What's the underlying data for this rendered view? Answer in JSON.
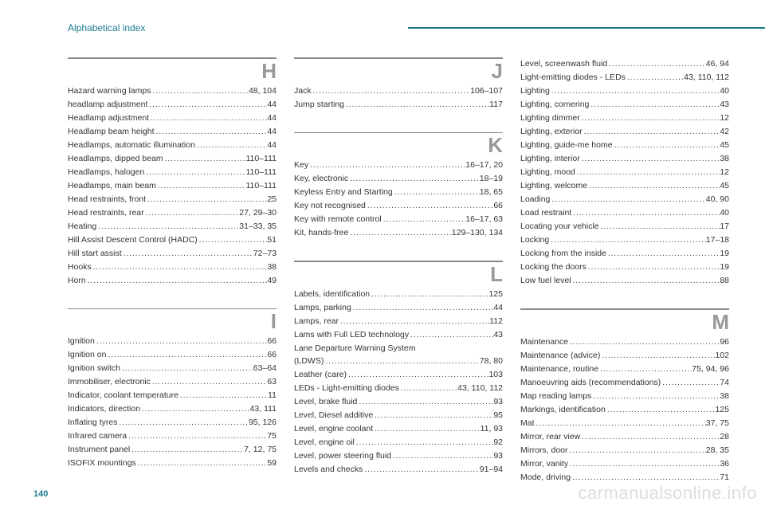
{
  "header": {
    "title": "Alphabetical index"
  },
  "page_number": "140",
  "watermark": "carmanualsonline.info",
  "columns": [
    {
      "sections": [
        {
          "letter": "H",
          "entries": [
            {
              "label": "Hazard warning lamps",
              "pages": "48, 104"
            },
            {
              "label": "headlamp adjustment",
              "pages": "44"
            },
            {
              "label": "Headlamp adjustment",
              "pages": "44"
            },
            {
              "label": "Headlamp beam height",
              "pages": "44"
            },
            {
              "label": "Headlamps, automatic illumination",
              "pages": "44"
            },
            {
              "label": "Headlamps, dipped beam",
              "pages": "110–111"
            },
            {
              "label": "Headlamps, halogen",
              "pages": "110–111"
            },
            {
              "label": "Headlamps, main beam",
              "pages": "110–111"
            },
            {
              "label": "Head restraints, front",
              "pages": "25"
            },
            {
              "label": "Head restraints, rear",
              "pages": "27, 29–30"
            },
            {
              "label": "Heating",
              "pages": "31–33, 35"
            },
            {
              "label": "Hill Assist Descent Control (HADC)",
              "pages": "51"
            },
            {
              "label": "Hill start assist",
              "pages": "72–73"
            },
            {
              "label": "Hooks",
              "pages": "38"
            },
            {
              "label": "Horn",
              "pages": "49"
            }
          ],
          "gap_after": true
        },
        {
          "letter": "I",
          "entries": [
            {
              "label": "Ignition",
              "pages": "66"
            },
            {
              "label": "Ignition on",
              "pages": "66"
            },
            {
              "label": "Ignition switch",
              "pages": "63–64"
            },
            {
              "label": "Immobiliser, electronic",
              "pages": "63"
            },
            {
              "label": "Indicator, coolant temperature",
              "pages": "11"
            },
            {
              "label": "Indicators, direction",
              "pages": "43, 111"
            },
            {
              "label": "Inflating tyres",
              "pages": "95, 126"
            },
            {
              "label": "Infrared camera",
              "pages": "75"
            },
            {
              "label": "Instrument panel",
              "pages": "7, 12, 75"
            },
            {
              "label": "ISOFIX mountings",
              "pages": "59"
            }
          ]
        }
      ]
    },
    {
      "sections": [
        {
          "letter": "J",
          "entries": [
            {
              "label": "Jack",
              "pages": "106–107"
            },
            {
              "label": "Jump starting",
              "pages": "117"
            }
          ],
          "gap_after": true
        },
        {
          "letter": "K",
          "entries": [
            {
              "label": "Key",
              "pages": "16–17, 20"
            },
            {
              "label": "Key, electronic",
              "pages": "18–19"
            },
            {
              "label": "Keyless Entry and Starting",
              "pages": "18, 65"
            },
            {
              "label": "Key not recognised",
              "pages": "66"
            },
            {
              "label": "Key with remote control",
              "pages": "16–17, 63"
            },
            {
              "label": "Kit, hands-free",
              "pages": "129–130, 134"
            }
          ],
          "gap_after": true
        },
        {
          "letter": "L",
          "entries": [
            {
              "label": "Labels, identification",
              "pages": "125"
            },
            {
              "label": "Lamps, parking",
              "pages": "44"
            },
            {
              "label": "Lamps, rear",
              "pages": "112"
            },
            {
              "label": "Lams with Full LED technology",
              "pages": "43"
            },
            {
              "label": "Lane Departure Warning System",
              "pages": ""
            },
            {
              "label": "(LDWS)",
              "pages": "78, 80"
            },
            {
              "label": "Leather (care)",
              "pages": "103"
            },
            {
              "label": "LEDs - Light-emitting diodes",
              "pages": "43, 110, 112"
            },
            {
              "label": "Level, brake fluid",
              "pages": "93"
            },
            {
              "label": "Level, Diesel additive",
              "pages": "95"
            },
            {
              "label": "Level, engine coolant",
              "pages": "11, 93"
            },
            {
              "label": "Level, engine oil",
              "pages": "92"
            },
            {
              "label": "Level, power steering fluid",
              "pages": "93"
            },
            {
              "label": "Levels and checks",
              "pages": "91–94"
            }
          ]
        }
      ]
    },
    {
      "sections": [
        {
          "entries": [
            {
              "label": "Level, screenwash fluid",
              "pages": "46, 94"
            },
            {
              "label": "Light-emitting diodes - LEDs",
              "pages": "43, 110, 112"
            },
            {
              "label": "Lighting",
              "pages": "40"
            },
            {
              "label": "Lighting, cornering",
              "pages": "43"
            },
            {
              "label": "Lighting dimmer",
              "pages": "12"
            },
            {
              "label": "Lighting, exterior",
              "pages": "42"
            },
            {
              "label": "Lighting, guide-me home",
              "pages": "45"
            },
            {
              "label": "Lighting, interior",
              "pages": "38"
            },
            {
              "label": "Lighting, mood",
              "pages": "12"
            },
            {
              "label": "Lighting, welcome",
              "pages": "45"
            },
            {
              "label": "Loading",
              "pages": "40, 90"
            },
            {
              "label": "Load restraint",
              "pages": "40"
            },
            {
              "label": "Locating your vehicle",
              "pages": "17"
            },
            {
              "label": "Locking",
              "pages": "17–18"
            },
            {
              "label": "Locking from the inside",
              "pages": "19"
            },
            {
              "label": "Locking the doors",
              "pages": "19"
            },
            {
              "label": "Low fuel level",
              "pages": "88"
            }
          ],
          "gap_after": true
        },
        {
          "letter": "M",
          "entries": [
            {
              "label": "Maintenance",
              "pages": "96"
            },
            {
              "label": "Maintenance (advice)",
              "pages": "102"
            },
            {
              "label": "Maintenance, routine",
              "pages": "75, 94, 96"
            },
            {
              "label": "Manoeuvring aids (recommendations)",
              "pages": "74"
            },
            {
              "label": "Map reading lamps",
              "pages": "38"
            },
            {
              "label": "Markings, identification",
              "pages": "125"
            },
            {
              "label": "Mat",
              "pages": "37, 75"
            },
            {
              "label": "Mirror, rear view",
              "pages": "28"
            },
            {
              "label": "Mirrors, door",
              "pages": "28, 35"
            },
            {
              "label": "Mirror, vanity",
              "pages": "36"
            },
            {
              "label": "Mode, driving",
              "pages": "71"
            }
          ]
        }
      ]
    }
  ]
}
